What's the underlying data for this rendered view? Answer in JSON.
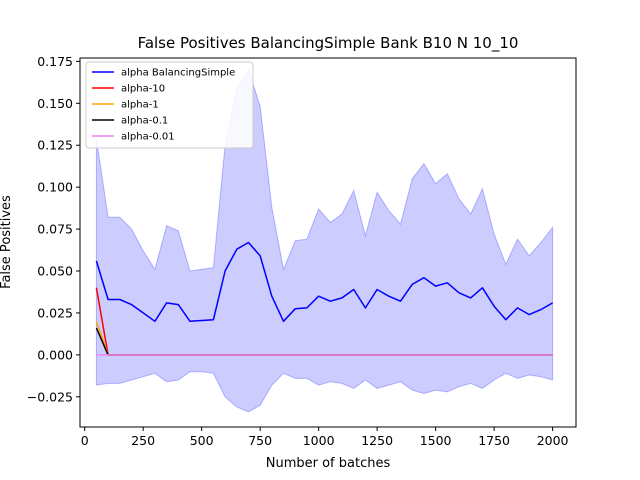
{
  "chart_data": {
    "type": "line",
    "title": "False Positives BalancingSimple Bank B10 N 10_10",
    "xlabel": "Number of batches",
    "ylabel": "False Positives",
    "xlim": [
      -20,
      2100
    ],
    "ylim": [
      -0.043,
      0.177
    ],
    "xticks": [
      0,
      250,
      500,
      750,
      1000,
      1250,
      1500,
      1750,
      2000
    ],
    "yticks": [
      -0.025,
      0.0,
      0.025,
      0.05,
      0.075,
      0.1,
      0.125,
      0.15,
      0.175
    ],
    "xtick_labels": [
      "0",
      "250",
      "500",
      "750",
      "1000",
      "1250",
      "1500",
      "1750",
      "2000"
    ],
    "ytick_labels": [
      "−0.025",
      "0.000",
      "0.025",
      "0.050",
      "0.075",
      "0.100",
      "0.125",
      "0.150",
      "0.175"
    ],
    "grid": false,
    "legend_position": "top-left",
    "band": {
      "series": "alpha BalancingSimple",
      "color": "#0000ff",
      "x": [
        50,
        100,
        150,
        200,
        250,
        300,
        350,
        400,
        450,
        500,
        550,
        600,
        650,
        700,
        750,
        800,
        850,
        900,
        950,
        1000,
        1050,
        1100,
        1150,
        1200,
        1250,
        1300,
        1350,
        1400,
        1450,
        1500,
        1550,
        1600,
        1650,
        1700,
        1750,
        1800,
        1850,
        1900,
        1950,
        2000
      ],
      "upper": [
        0.129,
        0.082,
        0.082,
        0.075,
        0.062,
        0.051,
        0.077,
        0.074,
        0.05,
        0.051,
        0.052,
        0.125,
        0.158,
        0.17,
        0.148,
        0.088,
        0.051,
        0.068,
        0.069,
        0.087,
        0.079,
        0.084,
        0.098,
        0.071,
        0.097,
        0.086,
        0.078,
        0.105,
        0.114,
        0.102,
        0.108,
        0.093,
        0.084,
        0.099,
        0.072,
        0.054,
        0.069,
        0.059,
        0.067,
        0.076
      ],
      "lower": [
        -0.018,
        -0.017,
        -0.017,
        -0.015,
        -0.013,
        -0.011,
        -0.016,
        -0.015,
        -0.01,
        -0.01,
        -0.011,
        -0.025,
        -0.031,
        -0.034,
        -0.03,
        -0.018,
        -0.011,
        -0.014,
        -0.014,
        -0.018,
        -0.016,
        -0.017,
        -0.02,
        -0.015,
        -0.02,
        -0.018,
        -0.016,
        -0.021,
        -0.023,
        -0.021,
        -0.022,
        -0.019,
        -0.017,
        -0.02,
        -0.015,
        -0.011,
        -0.014,
        -0.012,
        -0.013,
        -0.015
      ]
    },
    "series": [
      {
        "name": "alpha BalancingSimple",
        "color": "#0000ff",
        "x": [
          50,
          100,
          150,
          200,
          250,
          300,
          350,
          400,
          450,
          500,
          550,
          600,
          650,
          700,
          750,
          800,
          850,
          900,
          950,
          1000,
          1050,
          1100,
          1150,
          1200,
          1250,
          1300,
          1350,
          1400,
          1450,
          1500,
          1550,
          1600,
          1650,
          1700,
          1750,
          1800,
          1850,
          1900,
          1950,
          2000
        ],
        "values": [
          0.056,
          0.033,
          0.033,
          0.03,
          0.025,
          0.02,
          0.031,
          0.03,
          0.02,
          0.0205,
          0.021,
          0.05,
          0.063,
          0.067,
          0.059,
          0.035,
          0.02,
          0.0275,
          0.028,
          0.035,
          0.032,
          0.034,
          0.039,
          0.028,
          0.039,
          0.035,
          0.032,
          0.042,
          0.046,
          0.041,
          0.043,
          0.037,
          0.034,
          0.04,
          0.029,
          0.021,
          0.028,
          0.024,
          0.027,
          0.031
        ]
      },
      {
        "name": "alpha-10",
        "color": "#ff0000",
        "x": [
          50,
          100,
          2000
        ],
        "values": [
          0.04,
          0.0,
          0.0
        ]
      },
      {
        "name": "alpha-1",
        "color": "#ffa500",
        "x": [
          50,
          100,
          2000
        ],
        "values": [
          0.02,
          0.0,
          0.0
        ]
      },
      {
        "name": "alpha-0.1",
        "color": "#000000",
        "x": [
          50,
          100,
          2000
        ],
        "values": [
          0.016,
          0.0,
          0.0
        ]
      },
      {
        "name": "alpha-0.01",
        "color": "#ee82ee",
        "x": [
          50,
          100,
          2000
        ],
        "values": [
          0.0,
          0.0,
          0.0
        ]
      }
    ]
  }
}
